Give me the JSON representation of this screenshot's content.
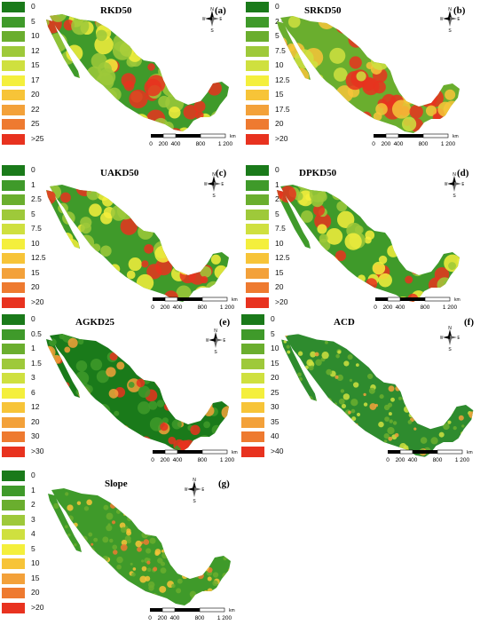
{
  "panels": [
    {
      "title": "RKD50",
      "letter": "(a)",
      "legend": [
        "0",
        "5",
        "10",
        "12",
        "15",
        "17",
        "20",
        "22",
        "25",
        ">25"
      ]
    },
    {
      "title": "SRKD50",
      "letter": "(b)",
      "legend": [
        "0",
        "2.5",
        "5",
        "7.5",
        "10",
        "12.5",
        "15",
        "17.5",
        "20",
        ">20"
      ]
    },
    {
      "title": "UAKD50",
      "letter": "(c)",
      "legend": [
        "0",
        "1",
        "2.5",
        "5",
        "7.5",
        "10",
        "12.5",
        "15",
        "20",
        ">20"
      ]
    },
    {
      "title": "DPKD50",
      "letter": "(d)",
      "legend": [
        "0",
        "1",
        "2.5",
        "5",
        "7.5",
        "10",
        "12.5",
        "15",
        "20",
        ">20"
      ]
    },
    {
      "title": "AGKD25",
      "letter": "(e)",
      "legend": [
        "0",
        "0.5",
        "1",
        "1.5",
        "3",
        "6",
        "12",
        "20",
        "30",
        ">30"
      ]
    },
    {
      "title": "ACD",
      "letter": "(f)",
      "legend": [
        "0",
        "5",
        "10",
        "15",
        "20",
        "25",
        "30",
        "35",
        "40",
        ">40"
      ]
    },
    {
      "title": "Slope",
      "letter": "(g)",
      "legend": [
        "0",
        "1",
        "2",
        "3",
        "4",
        "5",
        "10",
        "15",
        "20",
        ">20"
      ]
    }
  ],
  "legend_colors": [
    "#1a7a1a",
    "#3f9a2a",
    "#6aae2e",
    "#9ec93a",
    "#cfe03f",
    "#f4ef3c",
    "#f7c438",
    "#f3a13a",
    "#ee7a30",
    "#e8321f"
  ],
  "scale": {
    "unit": "km",
    "ticks": [
      "0",
      "200",
      "400",
      "800",
      "1 200"
    ]
  },
  "compass": {
    "north": "N",
    "south": "S",
    "east": "E",
    "west": "W"
  },
  "map_colors": {
    "green": "#2e8b2e",
    "yellow": "#e6d83a",
    "red": "#e8321f",
    "darkgreen": "#1e6e1e"
  }
}
